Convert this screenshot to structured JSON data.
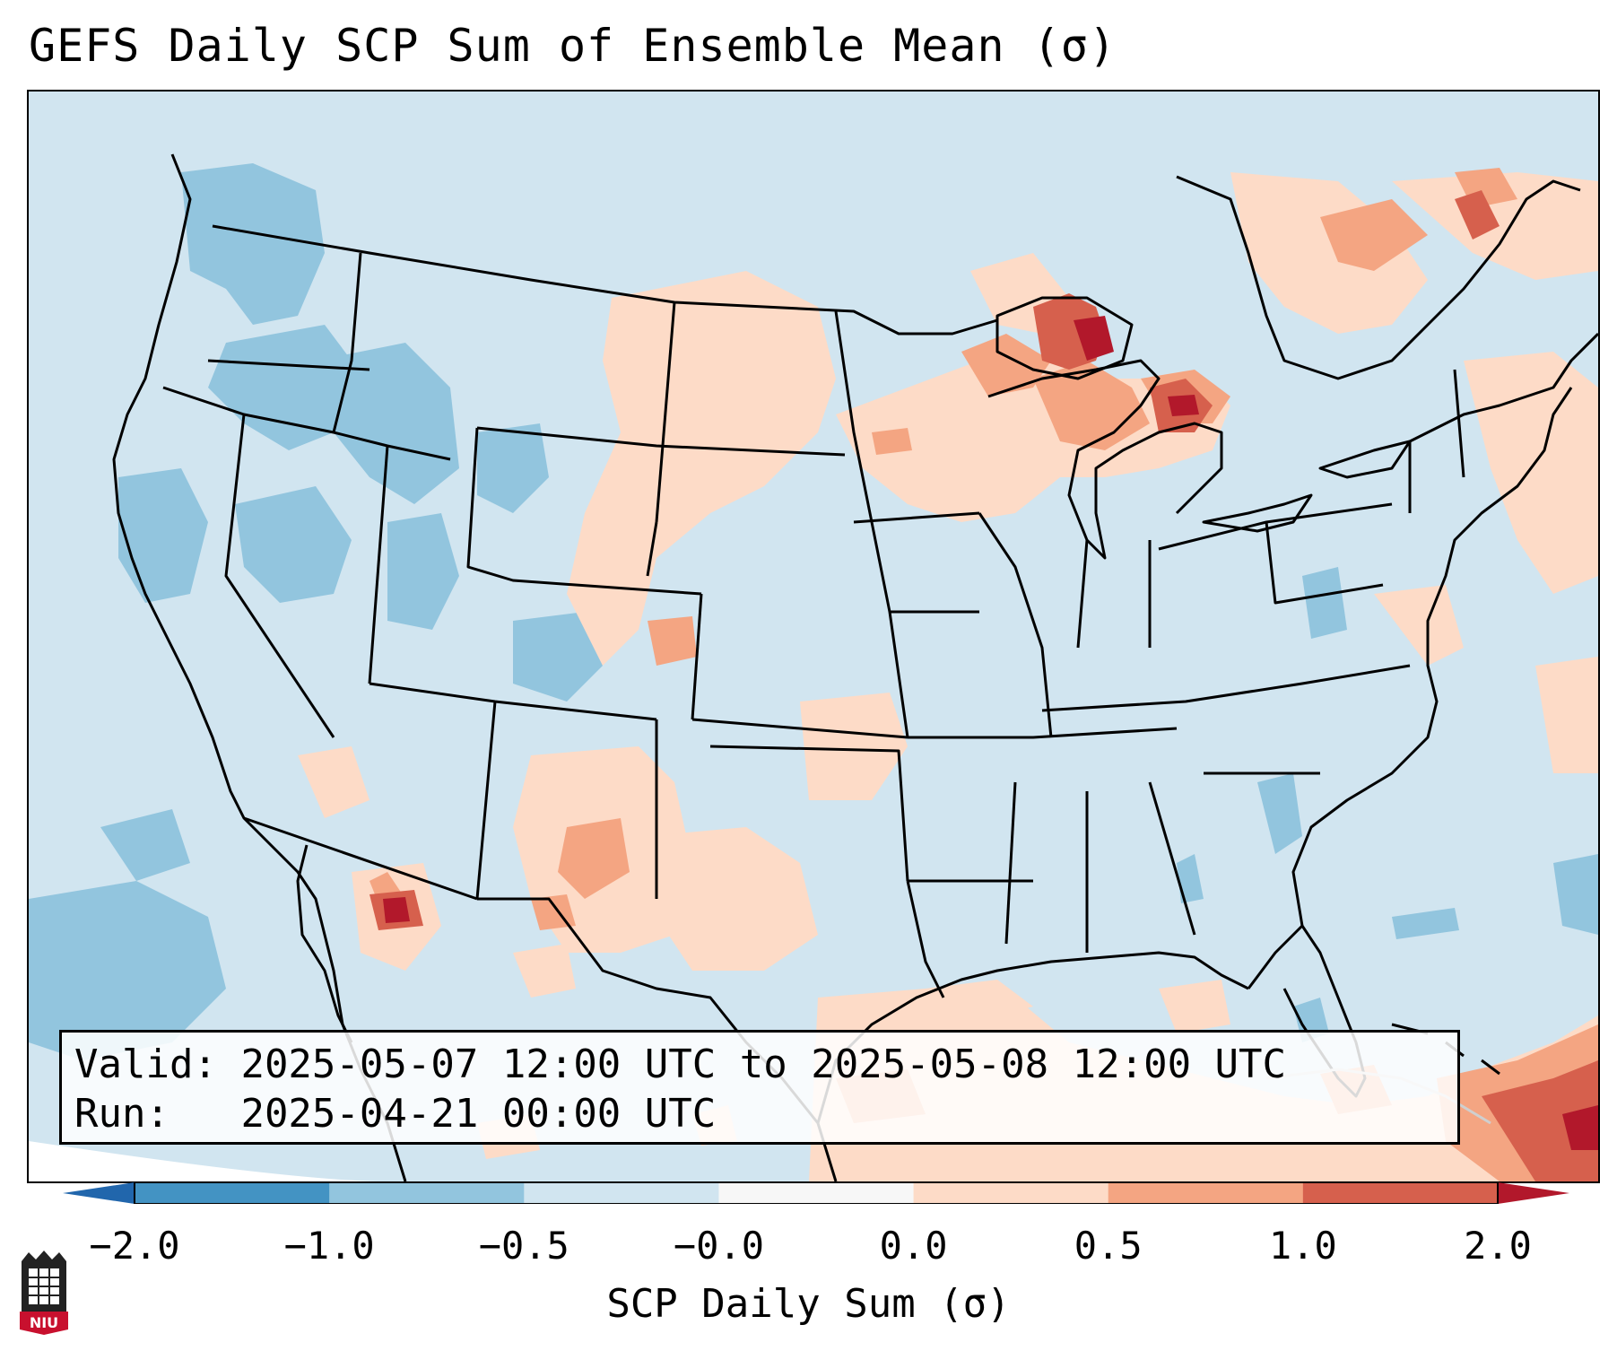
{
  "title": "GEFS Daily SCP Sum of Ensemble Mean (σ)",
  "info": {
    "valid_label": "Valid:",
    "valid_value": "2025-05-07 12:00 UTC to 2025-05-08 12:00 UTC",
    "run_label": "Run:",
    "run_value": "2025-04-21 00:00 UTC"
  },
  "colorbar": {
    "title": "SCP Daily Sum (σ)",
    "ticks": [
      "−2.0",
      "−1.0",
      "−0.5",
      "−0.0",
      "0.0",
      "0.5",
      "1.0",
      "2.0"
    ],
    "colors": [
      "#4393c3",
      "#92c5de",
      "#d1e5f0",
      "#f7f7f7",
      "#fddbc7",
      "#f4a582",
      "#d6604d"
    ],
    "extend_low": "#2166ac",
    "extend_high": "#b2182b"
  },
  "logo": {
    "text": "NIU",
    "color": "#c8102e"
  },
  "map": {
    "background": "#d1e5f0",
    "positive_light": "#fddbc7",
    "positive_mid": "#f4a582",
    "positive_strong": "#d6604d",
    "positive_max": "#b2182b",
    "negative_mid": "#92c5de"
  }
}
